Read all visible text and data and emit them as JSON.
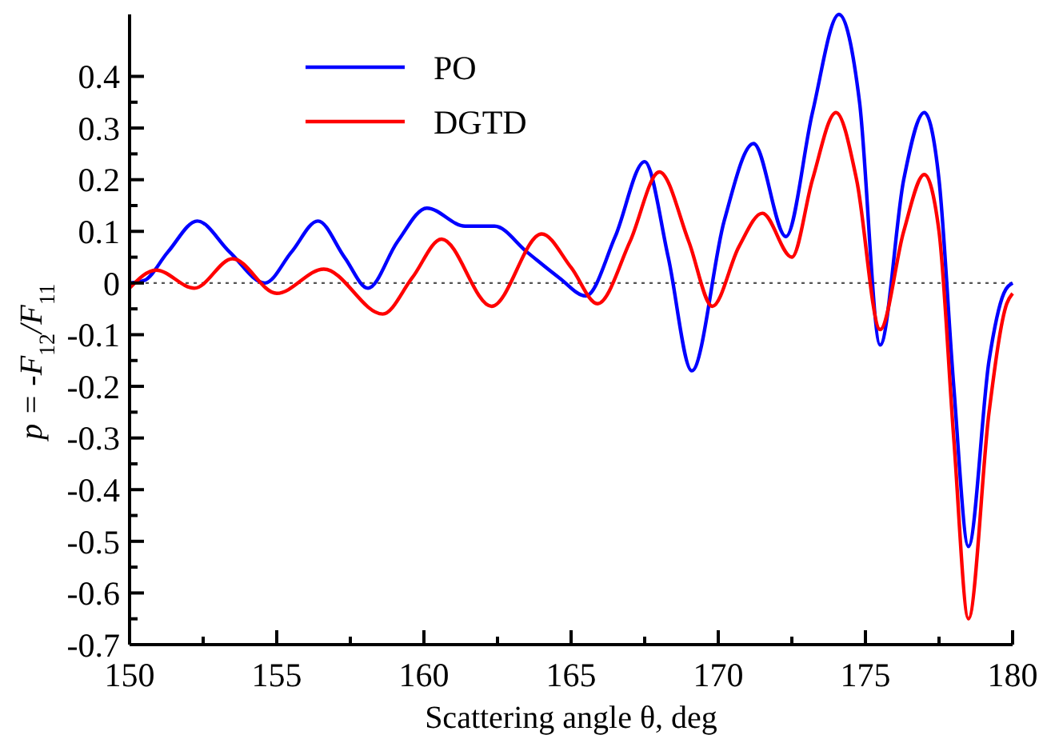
{
  "chart_data": {
    "type": "line",
    "xlabel": "Scattering angle θ, deg",
    "ylabel": "p = -F$_{12}$/F$_{11}$",
    "xlim": [
      150,
      180
    ],
    "ylim": [
      -0.7,
      0.52
    ],
    "xticks": [
      150,
      {
        "value": 152.5,
        "label": null
      },
      155,
      {
        "value": 157.5,
        "label": null
      },
      160,
      {
        "value": 162.5,
        "label": null
      },
      165,
      {
        "value": 167.5,
        "label": null
      },
      170,
      {
        "value": 172.5,
        "label": null
      },
      175,
      {
        "value": 177.5,
        "label": null
      },
      180
    ],
    "yticks": [
      -0.7,
      {
        "value": -0.65,
        "label": null
      },
      -0.6,
      {
        "value": -0.55,
        "label": null
      },
      -0.5,
      {
        "value": -0.45,
        "label": null
      },
      -0.4,
      {
        "value": -0.35,
        "label": null
      },
      -0.3,
      {
        "value": -0.25,
        "label": null
      },
      -0.2,
      {
        "value": -0.15,
        "label": null
      },
      -0.1,
      {
        "value": -0.05,
        "label": null
      },
      0,
      {
        "value": 0.05,
        "label": null
      },
      0.1,
      {
        "value": 0.15,
        "label": null
      },
      0.2,
      {
        "value": 0.25,
        "label": null
      },
      0.3,
      {
        "value": 0.35,
        "label": null
      },
      0.4
    ],
    "legend": "top left",
    "grid": false,
    "line_style": "solid",
    "marker": "none",
    "ref_lines": [
      {
        "axis": "y",
        "value": 0,
        "color": "#555555",
        "line_style": "dotted"
      }
    ],
    "series": [
      {
        "name": "PO",
        "color": "#0000ff",
        "x": [
          150,
          150.5,
          151.3,
          152.3,
          153.4,
          154.6,
          155.5,
          156.4,
          157.3,
          158.1,
          159.1,
          160.1,
          161.4,
          162.4,
          163.5,
          164.6,
          165.5,
          166.5,
          167.5,
          168.3,
          169.1,
          170.2,
          171.2,
          172.3,
          173.2,
          174.1,
          174.8,
          175.5,
          176.3,
          177,
          177.5,
          178,
          178.5,
          179.2,
          179.7,
          180
        ],
        "values": [
          0,
          0.005,
          0.06,
          0.12,
          0.06,
          0,
          0.06,
          0.12,
          0.05,
          -0.01,
          0.08,
          0.145,
          0.11,
          0.11,
          0.06,
          0.01,
          -0.025,
          0.09,
          0.235,
          0.05,
          -0.17,
          0.12,
          0.27,
          0.09,
          0.33,
          0.52,
          0.35,
          -0.12,
          0.2,
          0.33,
          0.2,
          -0.2,
          -0.51,
          -0.15,
          -0.02,
          0
        ]
      },
      {
        "name": "DGTD",
        "color": "#ff0000",
        "x": [
          150,
          150.9,
          152.2,
          153.5,
          155,
          156.6,
          158.6,
          159.6,
          160.6,
          162.3,
          164,
          165,
          165.9,
          167,
          168,
          169,
          169.8,
          170.7,
          171.5,
          172.5,
          173.2,
          174,
          174.7,
          175.5,
          176.3,
          177,
          177.5,
          178,
          178.5,
          179.2,
          179.8,
          180
        ],
        "values": [
          -0.01,
          0.025,
          -0.01,
          0.047,
          -0.02,
          0.027,
          -0.06,
          0.01,
          0.085,
          -0.045,
          0.095,
          0.03,
          -0.04,
          0.08,
          0.215,
          0.08,
          -0.045,
          0.07,
          0.135,
          0.05,
          0.2,
          0.33,
          0.2,
          -0.09,
          0.1,
          0.21,
          0.1,
          -0.3,
          -0.65,
          -0.25,
          -0.04,
          -0.02
        ]
      }
    ]
  }
}
